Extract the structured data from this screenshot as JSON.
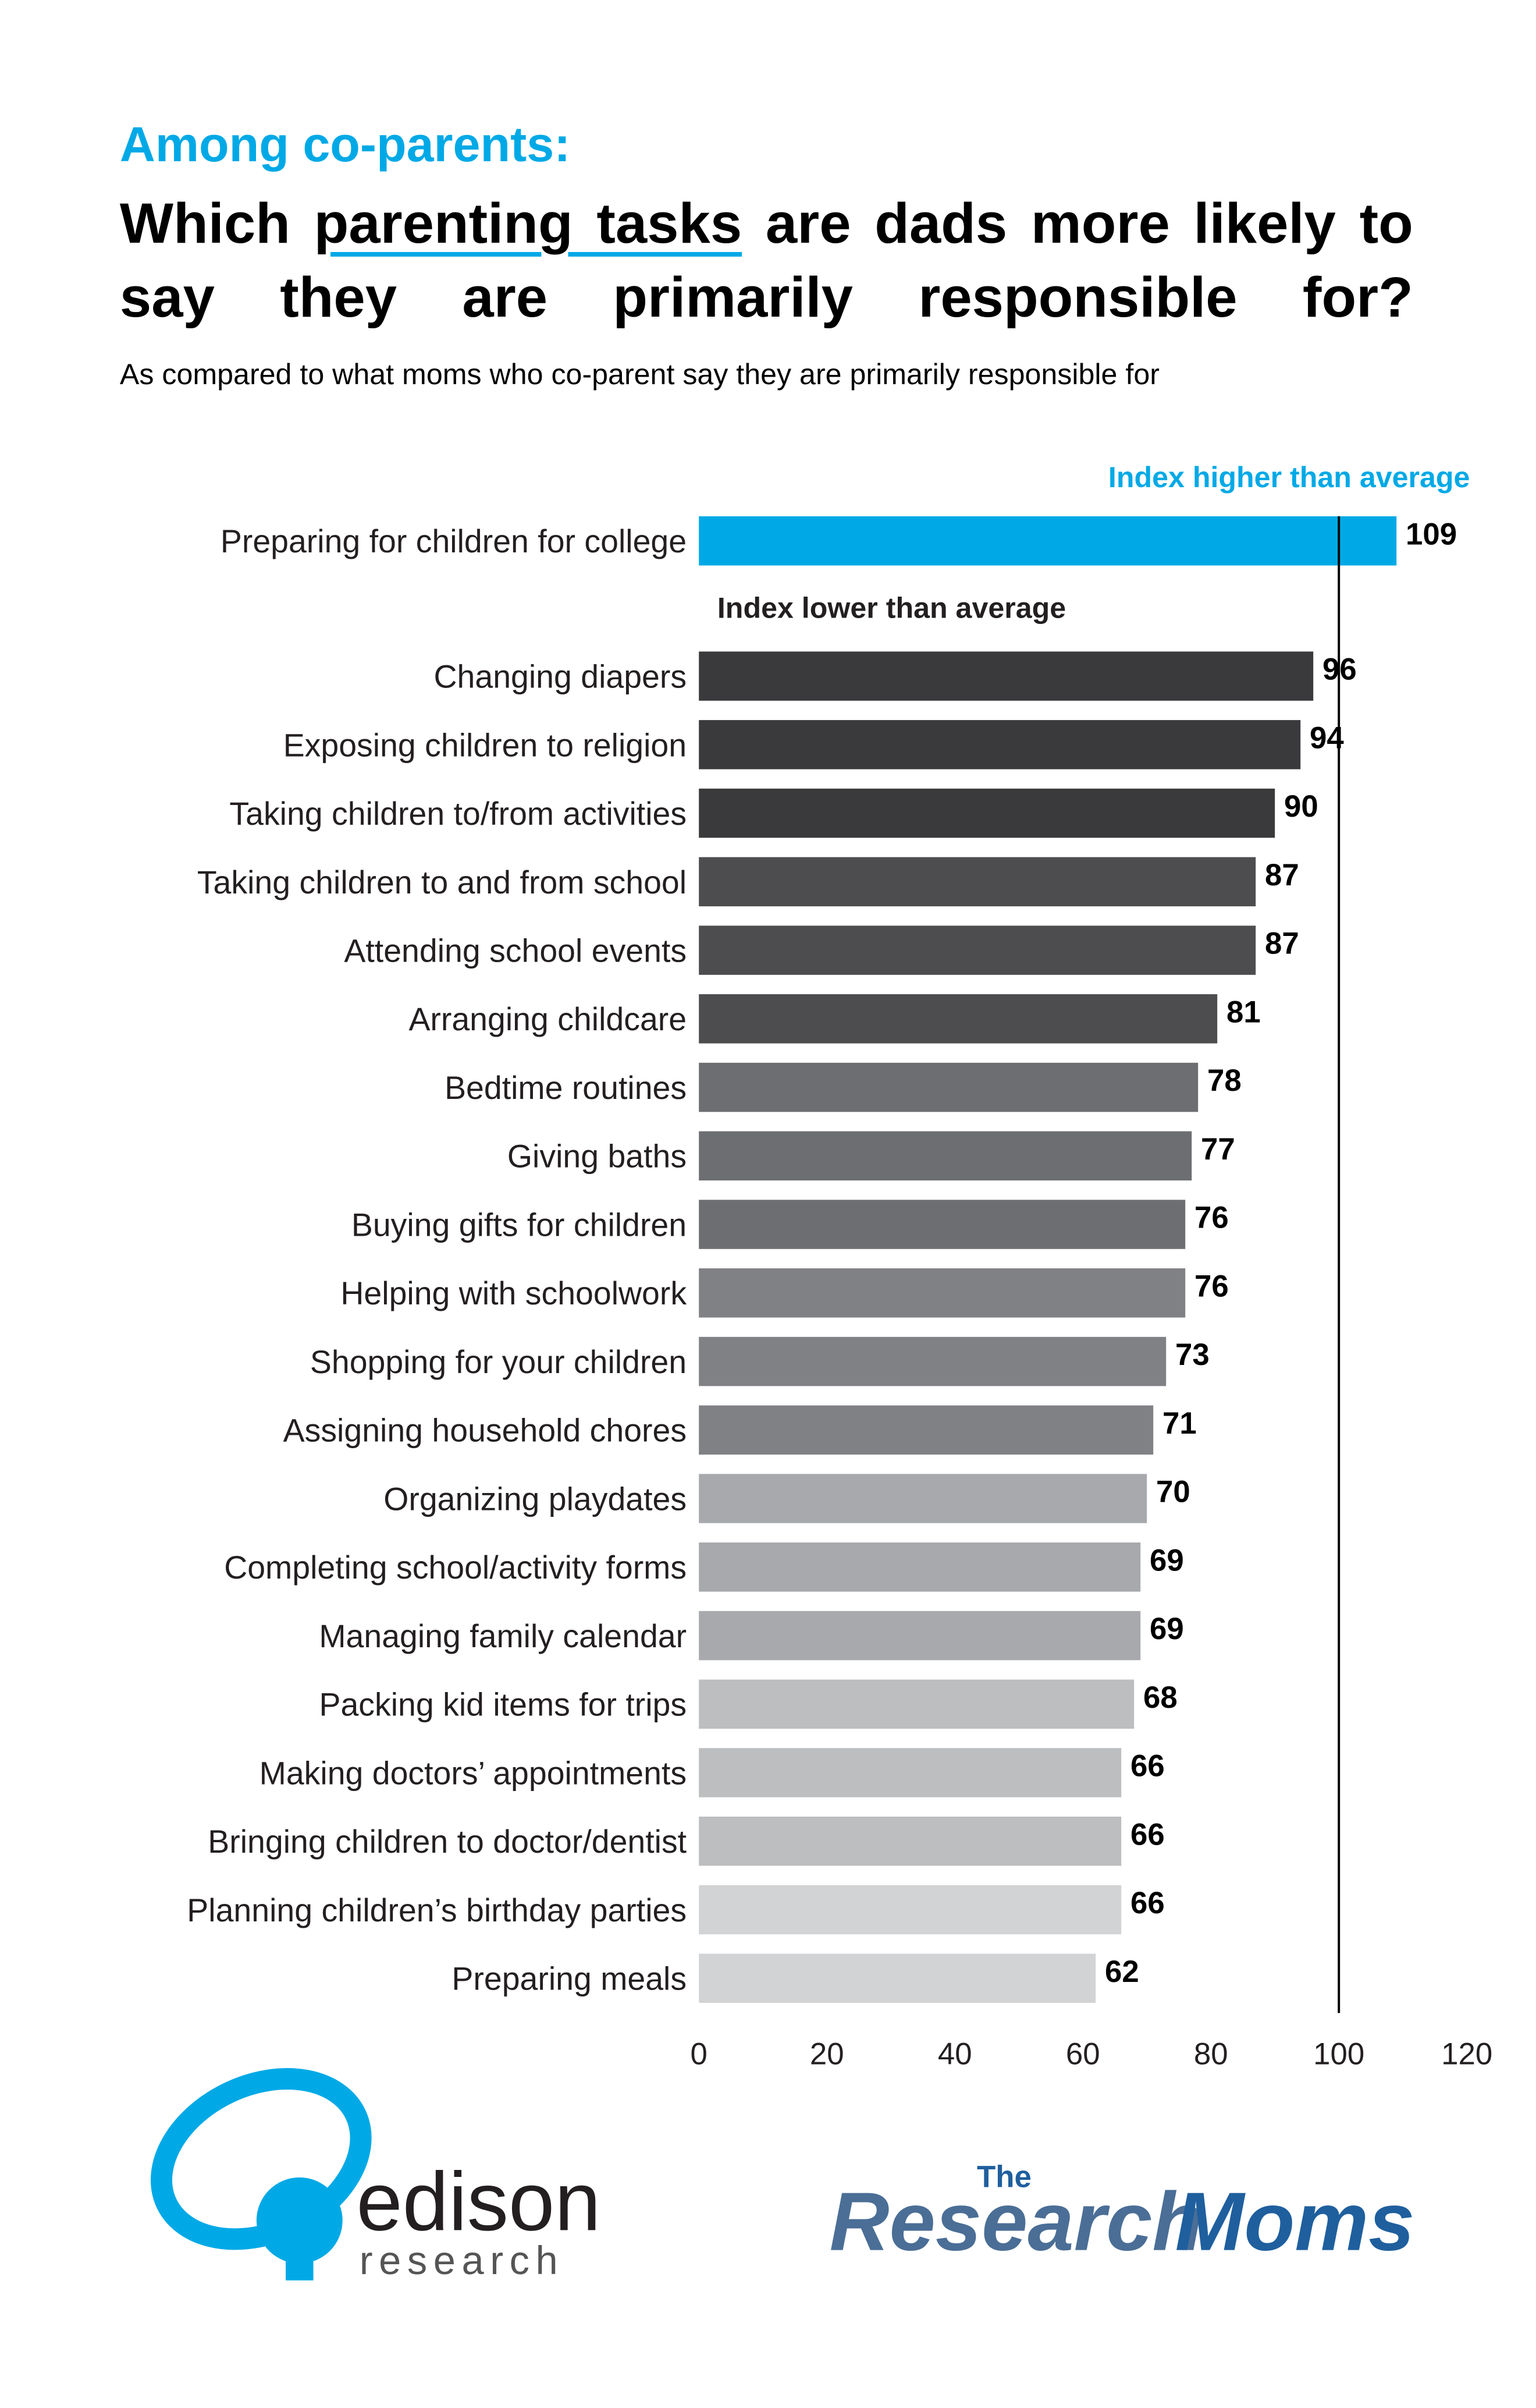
{
  "chart_data": {
    "type": "bar",
    "orientation": "horizontal",
    "title_lead": "Among co-parents:",
    "title_pre": "Which",
    "title_emphasis": "parenting tasks",
    "title_post": "are dads more likely to say they are primarily responsible for?",
    "subtitle": "As compared to what moms who co-parent say they are primarily responsible for",
    "annotation_high": "Index higher than average",
    "annotation_low": "Index lower than average",
    "categories": [
      "Preparing for children for college",
      "Changing diapers",
      "Exposing children to religion",
      "Taking children to/from activities",
      "Taking children to and from school",
      "Attending school events",
      "Arranging childcare",
      "Bedtime routines",
      "Giving baths",
      "Buying gifts for children",
      "Helping with schoolwork",
      "Shopping for your children",
      "Assigning household chores",
      "Organizing playdates",
      "Completing school/activity forms",
      "Managing family calendar",
      "Packing kid items for trips",
      "Making doctors’ appointments",
      "Bringing children to doctor/dentist",
      "Planning children’s birthday parties",
      "Preparing meals"
    ],
    "values": [
      109,
      96,
      94,
      90,
      87,
      87,
      81,
      78,
      77,
      76,
      76,
      73,
      71,
      70,
      69,
      69,
      68,
      66,
      66,
      66,
      62
    ],
    "colors": [
      "#00a9e6",
      "#3a3a3c",
      "#3a3a3c",
      "#3a3a3c",
      "#4d4d4f",
      "#4d4d4f",
      "#4d4d4f",
      "#6d6e71",
      "#6d6e71",
      "#6d6e71",
      "#808184",
      "#808184",
      "#808184",
      "#a7a9ac",
      "#a7a9ac",
      "#a7a9ac",
      "#bcbec0",
      "#bcbec0",
      "#bcbec0",
      "#d1d3d4",
      "#d1d3d4"
    ],
    "reference_line": 100,
    "xlim": [
      0,
      120
    ],
    "xticks": [
      0,
      20,
      40,
      60,
      80,
      100,
      120
    ],
    "grid": false,
    "logos": {
      "edison": "edison",
      "edison_sub": "research",
      "moms_the": "The",
      "moms_research": "Research",
      "moms_moms": "Moms"
    }
  }
}
